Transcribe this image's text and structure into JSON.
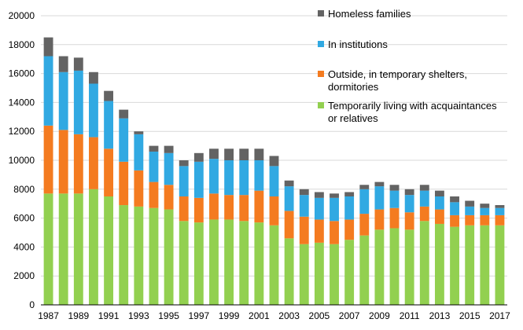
{
  "chart_data": {
    "type": "bar",
    "stacked": true,
    "title": "",
    "xlabel": "",
    "ylabel": "",
    "ylim": [
      0,
      20000
    ],
    "yticks": [
      0,
      2000,
      4000,
      6000,
      8000,
      10000,
      12000,
      14000,
      16000,
      18000,
      20000
    ],
    "ytick_labels": [
      "0",
      "2000",
      "4000",
      "6000",
      "8000",
      "10000",
      "12000",
      "14000",
      "16000",
      "18000",
      "20000"
    ],
    "categories": [
      "1987",
      "1988",
      "1989",
      "1990",
      "1991",
      "1992",
      "1993",
      "1994",
      "1995",
      "1996",
      "1997",
      "1998",
      "1999",
      "2000",
      "2001",
      "2002",
      "2003",
      "2004",
      "2005",
      "2006",
      "2007",
      "2008",
      "2009",
      "2010",
      "2011",
      "2012",
      "2013",
      "2014",
      "2015",
      "2016",
      "2017"
    ],
    "xtick_labels": [
      "1987",
      "1989",
      "1991",
      "1993",
      "1995",
      "1997",
      "1999",
      "2001",
      "2003",
      "2005",
      "2007",
      "2009",
      "2011",
      "2013",
      "2015",
      "2017"
    ],
    "legend_position": "top-right",
    "series": [
      {
        "name": "Temporarily living with acquaintances or relatives",
        "legend_lines": [
          "Temporarily living with acquaintances",
          "or relatives"
        ],
        "color": "#92d050",
        "values": [
          7700,
          7700,
          7700,
          8000,
          7500,
          6900,
          6800,
          6700,
          6600,
          5800,
          5700,
          5900,
          5900,
          5800,
          5700,
          5500,
          4600,
          4200,
          4300,
          4200,
          4500,
          4800,
          5200,
          5300,
          5200,
          5800,
          5600,
          5400,
          5500,
          5500,
          5500
        ]
      },
      {
        "name": "Outside, in temporary shelters, dormitories",
        "legend_lines": [
          "Outside, in temporary shelters,",
          "dormitories"
        ],
        "color": "#f47b20",
        "values": [
          4700,
          4400,
          4100,
          3600,
          3300,
          3000,
          2500,
          1800,
          1700,
          1700,
          1700,
          1800,
          1700,
          1800,
          2200,
          2000,
          1900,
          1900,
          1600,
          1600,
          1400,
          1500,
          1400,
          1400,
          1200,
          1000,
          1000,
          800,
          700,
          700,
          700
        ]
      },
      {
        "name": "In institutions",
        "legend_lines": [
          "In institutions"
        ],
        "color": "#31a9e2",
        "values": [
          4800,
          4000,
          4400,
          3700,
          3300,
          3000,
          2500,
          2100,
          2200,
          2100,
          2500,
          2400,
          2400,
          2400,
          2100,
          2100,
          1700,
          1500,
          1500,
          1600,
          1600,
          1700,
          1600,
          1200,
          1200,
          1100,
          900,
          900,
          600,
          500,
          500
        ]
      },
      {
        "name": "Homeless families",
        "legend_lines": [
          "Homeless families"
        ],
        "color": "#636363",
        "values": [
          1300,
          1100,
          900,
          800,
          700,
          600,
          200,
          400,
          500,
          400,
          600,
          700,
          800,
          800,
          800,
          700,
          400,
          400,
          400,
          300,
          300,
          300,
          300,
          400,
          400,
          400,
          400,
          400,
          400,
          300,
          200
        ]
      }
    ]
  }
}
